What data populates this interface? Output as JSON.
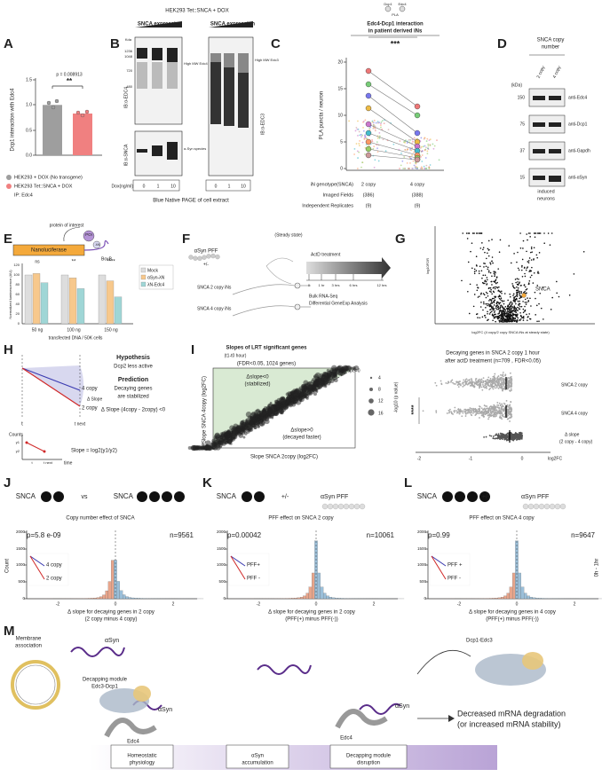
{
  "panels": [
    {
      "letter": "A",
      "texts": [
        "Dcp1 interaction with Edc4",
        "p = 0.008913",
        "**",
        "0.0",
        "0.5",
        "1.0",
        "1.5",
        "HEK293 + DOX (No transgene)",
        "HEK293 Tet::SNCA + DOX",
        "IP: Edc4"
      ]
    },
    {
      "letter": "B",
      "texts": [
        "HEK293 Tet::SNCA + DOX",
        "SNCA expression",
        "SNCA expression",
        "Kda",
        "1236",
        "1048",
        "720",
        "480",
        "High MW Edc4",
        "High MW Edc3",
        "IB:α-EDC4",
        "IB:α-EDC3",
        "IB:α-SNCA",
        "α-Syn species",
        "Dox(ng/ml)",
        "0",
        "1",
        "10",
        "0",
        "1",
        "10",
        "Blue Native PAGE of cell extract"
      ]
    },
    {
      "letter": "C",
      "texts": [
        "Dcp1",
        "Edc4",
        "PLA",
        "Edc4-Dcp1 interaction",
        "in patient derived iNs",
        "***",
        "PLA puncta / neuron",
        "0",
        "5",
        "10",
        "15",
        "20",
        "iN genotype(SNCA)",
        "2 copy",
        "4 copy",
        "Imaged Fields",
        "(386)",
        "(388)",
        "Independent Replicates",
        "(9)",
        "(9)"
      ]
    },
    {
      "letter": "D",
      "texts": [
        "SNCA copy",
        "number",
        "2 copy",
        "4 copy",
        "(kDa)",
        "150",
        "75",
        "37",
        "15",
        "anti-Edc4",
        "anti-Dcp1",
        "anti-Gapdh",
        "anti-αSyn",
        "induced",
        "neurons"
      ]
    },
    {
      "letter": "E",
      "texts": [
        "protein of interest",
        "POI",
        "λN",
        "Nanoluciferase",
        "BoxB",
        "Normalized luminescence (AU)",
        "0",
        "20",
        "40",
        "60",
        "80",
        "100",
        "120",
        "ns",
        "**",
        "****",
        "50 ng",
        "100 ng",
        "150 ng",
        "transfected DNA / 50K cells",
        "Mock",
        "αSyn-λN",
        "λN-Edc4"
      ]
    },
    {
      "letter": "F",
      "texts": [
        "αSyn PFF",
        "+/-",
        "(Steady state)",
        "SNCA 2 copy iNs",
        "SNCA 4 copy iNs",
        "ActD treatment",
        "0",
        "1 hr",
        "3 hrs",
        "6 hrs",
        "12 hrs",
        "Bulk RNA-Seq",
        "Differential GeneExp Analysis"
      ]
    },
    {
      "letter": "G",
      "texts": [
        "log10FDR",
        "SNCA",
        "log2FC (4 copy/2 copy SNCA iNs at steady state)"
      ]
    },
    {
      "letter": "H",
      "texts": [
        "Hypothesis",
        "Dcp2 less active",
        "Prediction",
        "Decaying genes",
        "are stabilized",
        "Δ Slope (4copy - 2copy) <0",
        "4 copy",
        "2 copy",
        "Δ Slope",
        "t",
        "t next",
        "Counts",
        "y1",
        "y2",
        "time",
        "t",
        "t next",
        "Slope = log2(y1/y2)"
      ]
    },
    {
      "letter": "I",
      "texts": [
        "Slopes of LRT significant genes",
        "(t1-t0 hour)",
        "(FDR<0.05, 1024 genes)",
        "Δslope=0",
        "Δslope<0",
        "(stabilized)",
        "Δslope>0",
        "(decayed faster)",
        "Slope SNCA 4copy (log2FC)",
        "Slope SNCA 2copy (log2FC)",
        "4",
        "8",
        "12",
        "16",
        "-log10 (p value)"
      ]
    },
    {
      "texts": [
        "Decaying genes in SNCA 2 copy 1 hour",
        "after actD treatment (n=709 , FDR<0.05)",
        "SNCA 2 copy",
        "SNCA 4 copy",
        "Δ slope",
        "(2 copy - 4 copy)",
        "****",
        "-2",
        "-1",
        "0",
        "log2FC"
      ]
    },
    {
      "letter": "J",
      "texts": [
        "SNCA",
        "vs",
        "SNCA",
        "Copy number effect of SNCA",
        "p=5.8 e-09",
        "n=9561",
        "4 copy",
        "2 copy",
        "0",
        "500",
        "1000",
        "1500",
        "2000",
        "-2",
        "0",
        "2",
        "Δ slope for decaying genes in 2 copy",
        "(2 copy minus 4 copy)",
        "Count"
      ]
    },
    {
      "letter": "K",
      "texts": [
        "SNCA",
        "+/-",
        "αSyn PFF",
        "PFF effect on SNCA 2 copy",
        "p=0.00042",
        "n=10061",
        "PFF+",
        "PFF -",
        "0",
        "500",
        "1000",
        "1500",
        "2000",
        "-2",
        "0",
        "2",
        "Δ slope for decaying genes in 2 copy",
        "(PFF(+) minus PFF(-))"
      ]
    },
    {
      "letter": "L",
      "texts": [
        "SNCA",
        "+/-",
        "αSyn PFF",
        "PFF effect on SNCA 4 copy",
        "p=0.99",
        "n=9647",
        "PFF +",
        "PFF -",
        "0",
        "500",
        "1000",
        "1500",
        "2000",
        "-2",
        "0",
        "2",
        "Δ slope for decaying genes in 4 copy",
        "(PFF(+) minus PFF(-))",
        "0h - 1hr"
      ]
    },
    {
      "letter": "M",
      "texts": [
        "Membrane",
        "association",
        "αSyn",
        "Decapping module",
        "Edc3-Dcp1",
        "αSyn",
        "Edc4",
        "Edc4",
        "αSyn",
        "Dcp1-Edc3",
        "Decreased mRNA degradation",
        "(or increased mRNA stability)",
        "Homeostatic",
        "physiology",
        "αSyn",
        "accumulation",
        "Decapping module",
        "disruption"
      ]
    }
  ]
}
